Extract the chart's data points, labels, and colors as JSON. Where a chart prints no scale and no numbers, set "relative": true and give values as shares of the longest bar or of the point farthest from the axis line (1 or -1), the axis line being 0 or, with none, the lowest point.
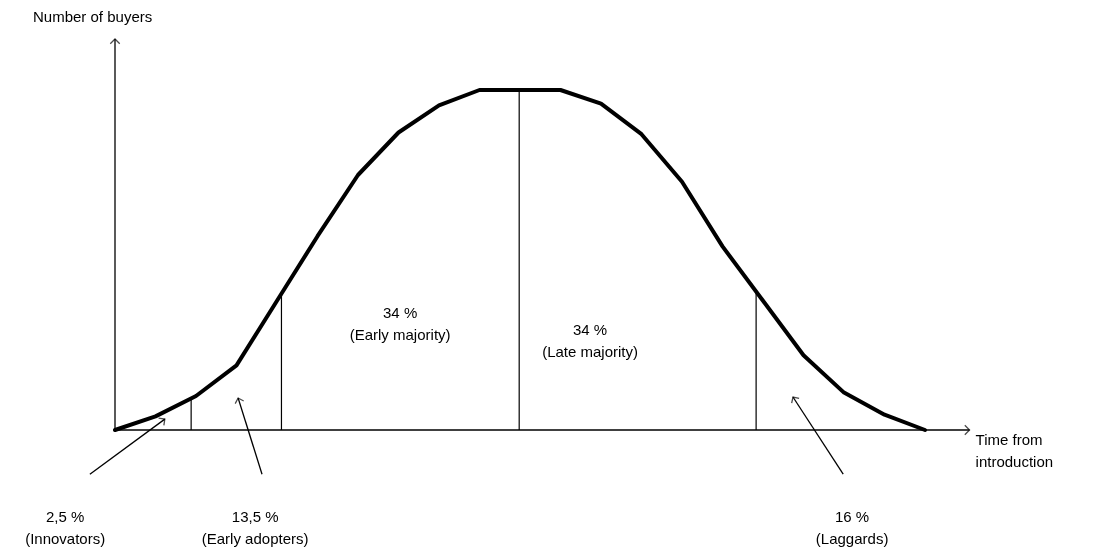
{
  "chart_data": {
    "type": "line",
    "relative": true,
    "xlabel": "Time from introduction",
    "ylabel": "Number of buyers",
    "categories": [
      null,
      null,
      null,
      null,
      null,
      null,
      null,
      null,
      null,
      null,
      null,
      null,
      null,
      null,
      null,
      null,
      null,
      null,
      null,
      null,
      null
    ],
    "series": [
      {
        "color": "#000000",
        "values": [
          0,
          0.04,
          0.1,
          0.19,
          0.38,
          0.57,
          0.75,
          0.875,
          0.955,
          1.0,
          1.0,
          1.0,
          0.96,
          0.87,
          0.73,
          0.54,
          0.38,
          0.22,
          0.11,
          0.045,
          0
        ]
      }
    ],
    "grid": false,
    "marker": "none",
    "line_style": "solid",
    "annotations": [
      "34 %\n(Early majority)",
      "34 %\n(Late majority)",
      "2,5 %\n(Innovators)",
      "13,5 %\n(Early adopters)",
      "16 %\n(Laggards)"
    ]
  }
}
